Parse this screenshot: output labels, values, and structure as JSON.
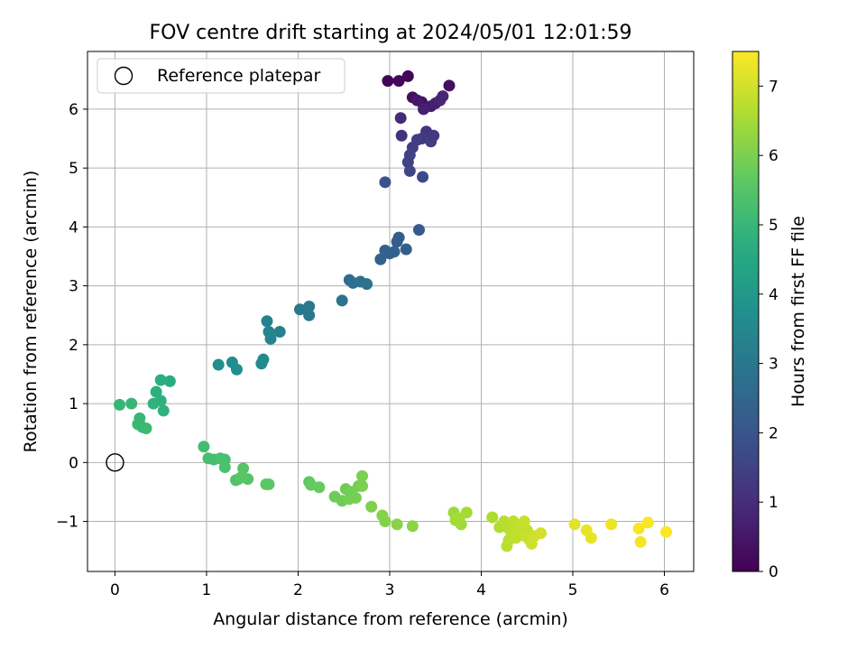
{
  "chart_data": {
    "type": "scatter",
    "title": "FOV centre drift starting at 2024/05/01 12:01:59",
    "xlabel": "Angular distance from reference (arcmin)",
    "ylabel": "Rotation from reference (arcmin)",
    "xlim": [
      -0.3,
      6.32
    ],
    "ylim": [
      -1.85,
      6.98
    ],
    "xticks": [
      0,
      1,
      2,
      3,
      4,
      5,
      6
    ],
    "yticks": [
      -1,
      0,
      1,
      2,
      3,
      4,
      5,
      6
    ],
    "grid": true,
    "legend": {
      "label": "Reference platepar",
      "location": "upper left",
      "marker": "open circle"
    },
    "reference_point": {
      "x": 0,
      "y": 0
    },
    "colorbar": {
      "label": "Hours from first FF file",
      "colormap": "viridis",
      "range": [
        0,
        7.5
      ],
      "ticks": [
        0,
        1,
        2,
        3,
        4,
        5,
        6,
        7
      ]
    },
    "series": [
      {
        "x": [
          2.98,
          3.1,
          3.2,
          3.25,
          3.35,
          3.3,
          3.45,
          3.5,
          3.55,
          3.58,
          3.65,
          3.37,
          3.12,
          3.13,
          3.4,
          3.35,
          3.45,
          3.48,
          3.3,
          3.25,
          3.22,
          3.2,
          3.22,
          3.36,
          2.95,
          3.32,
          3.1,
          3.08,
          3.18,
          3.0,
          2.95,
          3.05,
          2.9,
          2.56,
          2.6,
          2.68,
          2.75,
          2.48,
          2.12,
          2.12,
          2.02,
          1.8,
          1.66,
          1.68,
          1.7,
          1.62,
          1.6,
          1.28,
          1.33,
          1.13,
          0.6,
          0.5,
          0.45,
          0.5,
          0.42,
          0.53,
          0.05,
          0.18,
          0.27,
          0.25,
          0.3,
          0.34,
          0.97,
          1.02,
          1.08,
          1.15,
          1.2,
          1.2,
          1.35,
          1.32,
          1.4,
          1.45,
          1.38,
          1.65,
          1.68,
          2.12,
          2.14,
          2.23,
          2.4,
          2.48,
          2.52,
          2.56,
          2.58,
          2.63,
          2.66,
          2.7,
          2.7,
          2.8,
          2.92,
          2.95,
          3.08,
          3.25,
          3.7,
          3.72,
          3.78,
          3.76,
          3.84,
          4.12,
          4.2,
          4.25,
          4.3,
          4.33,
          4.28,
          4.38,
          4.42,
          4.45,
          4.5,
          4.35,
          4.4,
          4.48,
          4.52,
          4.55,
          4.58,
          4.65,
          4.3,
          4.38,
          4.47,
          5.02,
          5.15,
          5.2,
          5.42,
          5.72,
          5.74,
          5.82,
          6.02
        ],
        "y": [
          6.48,
          6.48,
          6.56,
          6.2,
          6.12,
          6.15,
          6.05,
          6.1,
          6.15,
          6.22,
          6.4,
          6.0,
          5.85,
          5.55,
          5.62,
          5.5,
          5.45,
          5.55,
          5.48,
          5.35,
          5.22,
          5.1,
          4.95,
          4.85,
          4.76,
          3.95,
          3.82,
          3.75,
          3.62,
          3.55,
          3.6,
          3.58,
          3.45,
          3.1,
          3.05,
          3.07,
          3.03,
          2.75,
          2.65,
          2.5,
          2.6,
          2.22,
          2.4,
          2.22,
          2.1,
          1.75,
          1.68,
          1.7,
          1.58,
          1.66,
          1.38,
          1.4,
          1.2,
          1.05,
          1.0,
          0.88,
          0.98,
          1.0,
          0.75,
          0.65,
          0.6,
          0.58,
          0.27,
          0.07,
          0.05,
          0.07,
          0.05,
          -0.08,
          -0.28,
          -0.3,
          -0.1,
          -0.28,
          -0.25,
          -0.37,
          -0.37,
          -0.33,
          -0.38,
          -0.42,
          -0.58,
          -0.65,
          -0.45,
          -0.62,
          -0.5,
          -0.6,
          -0.4,
          -0.4,
          -0.23,
          -0.75,
          -0.9,
          -1.0,
          -1.05,
          -1.08,
          -0.85,
          -0.98,
          -1.05,
          -0.95,
          -0.85,
          -0.93,
          -1.1,
          -1.0,
          -1.12,
          -1.2,
          -1.42,
          -1.05,
          -1.1,
          -1.2,
          -1.15,
          -1.0,
          -1.15,
          -1.25,
          -1.3,
          -1.38,
          -1.25,
          -1.2,
          -1.32,
          -1.28,
          -1.0,
          -1.05,
          -1.15,
          -1.28,
          -1.05,
          -1.12,
          -1.35,
          -1.02,
          -1.18
        ],
        "hours": [
          0.05,
          0.1,
          0.1,
          0.3,
          0.4,
          0.5,
          0.6,
          0.7,
          0.8,
          0.8,
          0.3,
          0.7,
          0.9,
          1.1,
          1.2,
          1.3,
          1.35,
          1.3,
          1.4,
          1.4,
          1.5,
          1.5,
          1.6,
          1.7,
          1.9,
          2.1,
          2.2,
          2.2,
          2.25,
          2.3,
          2.3,
          2.35,
          2.4,
          2.7,
          2.75,
          2.8,
          2.85,
          2.9,
          3.0,
          3.05,
          3.05,
          3.3,
          3.35,
          3.4,
          3.4,
          3.55,
          3.6,
          3.65,
          3.7,
          3.7,
          4.7,
          4.75,
          4.8,
          4.8,
          4.85,
          4.85,
          4.95,
          5.0,
          5.0,
          5.05,
          5.05,
          5.1,
          5.2,
          5.25,
          5.25,
          5.3,
          5.3,
          5.35,
          5.4,
          5.45,
          5.5,
          5.5,
          5.55,
          5.6,
          5.6,
          5.65,
          5.7,
          5.75,
          5.8,
          5.85,
          5.85,
          5.9,
          5.9,
          5.95,
          5.95,
          6.0,
          6.0,
          6.05,
          6.1,
          6.1,
          6.15,
          6.2,
          6.4,
          6.45,
          6.45,
          6.5,
          6.5,
          6.6,
          6.65,
          6.7,
          6.7,
          6.75,
          6.75,
          6.8,
          6.8,
          6.85,
          6.85,
          6.8,
          6.85,
          6.9,
          6.9,
          6.95,
          6.95,
          7.0,
          6.75,
          6.8,
          6.9,
          7.2,
          7.25,
          7.25,
          7.3,
          7.4,
          7.4,
          7.45,
          7.5
        ]
      }
    ]
  }
}
